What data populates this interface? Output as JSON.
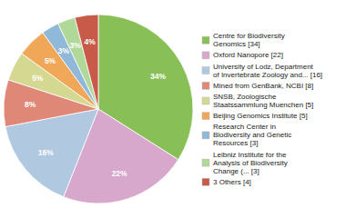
{
  "chart_data": {
    "type": "pie",
    "categories": [
      "Centre for Biodiversity\nGenomics [34]",
      "Oxford Nanopore [22]",
      "University of Lodz, Department\nof Invertebrate Zoology and... [16]",
      "Mined from GenBank, NCBI [8]",
      "SNSB, Zoologische\nStaatssammlung Muenchen [5]",
      "Beijing Genomics Institute [5]",
      "Research Center in\nBiodiversity and Genetic\nResources [3]",
      "Leibniz Institute for the\nAnalysis of Biodiversity\nChange (... [3]",
      "3 Others [4]"
    ],
    "values": [
      34,
      22,
      16,
      8,
      5,
      5,
      3,
      3,
      4
    ],
    "value_labels": [
      "34%",
      "22%",
      "16%",
      "8%",
      "5%",
      "5%",
      "3%",
      "3%",
      "4%"
    ],
    "colors": [
      "#88c057",
      "#d8a8cc",
      "#b0c8e0",
      "#e08878",
      "#d4d890",
      "#f0a858",
      "#90b8d8",
      "#b0d898",
      "#c85a4a"
    ],
    "data_labels": true,
    "legend": "right"
  }
}
